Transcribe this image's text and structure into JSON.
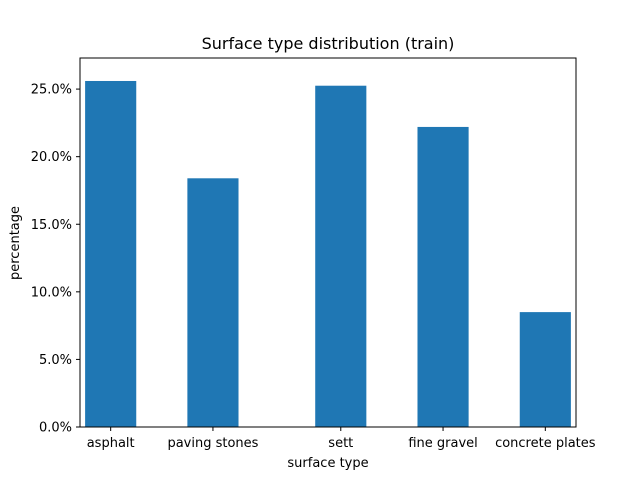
{
  "chart_data": {
    "type": "bar",
    "title": "Surface type distribution (train)",
    "xlabel": "surface type",
    "ylabel": "percentage",
    "categories": [
      "asphalt",
      "paving stones",
      "sett",
      "fine gravel",
      "concrete plates"
    ],
    "x_positions": [
      0,
      1,
      2.25,
      3.25,
      4.25
    ],
    "values": [
      25.6,
      18.4,
      25.25,
      22.2,
      8.5
    ],
    "ylim": [
      0,
      27.3
    ],
    "xlim": [
      -0.3,
      4.55
    ],
    "yticks": [
      0,
      5,
      10,
      15,
      20,
      25
    ],
    "ytick_labels": [
      "0.0%",
      "5.0%",
      "10.0%",
      "15.0%",
      "20.0%",
      "25.0%"
    ],
    "bar_width": 0.5,
    "grid": false,
    "legend": "none",
    "colors": {
      "bar": "#1f77b4",
      "axis": "#000000",
      "background": "#ffffff"
    }
  }
}
